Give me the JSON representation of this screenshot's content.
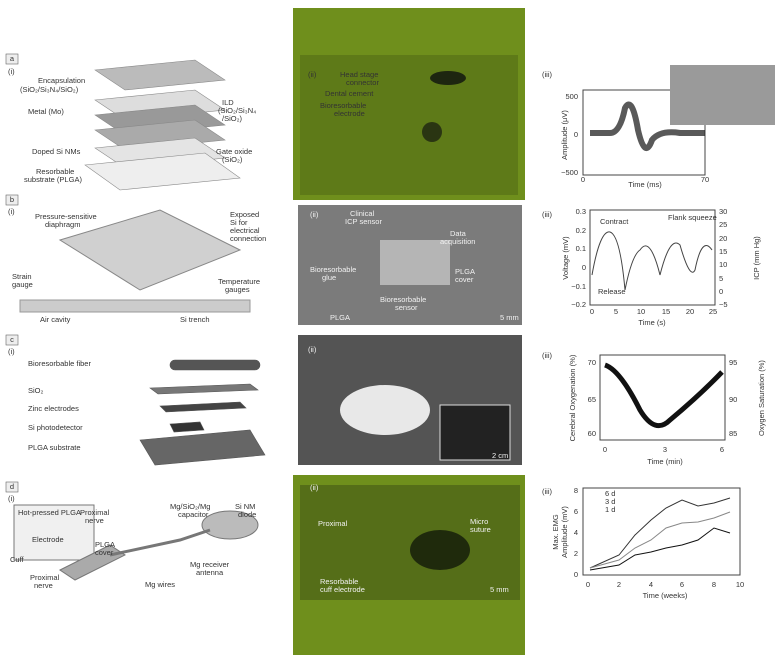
{
  "panels": [
    {
      "texts": [
        "a",
        "(i)",
        "Encapsulation",
        "(SiO₂/Si₃N₄/SiO₂)",
        "Metal (Mo)",
        "ILD",
        "(SiO₂/Si₃N₄",
        "/SiO₂)",
        "Doped Si NMs",
        "Gate oxide",
        "(SiO₂)",
        "Resorbable",
        "substrate (PLGA)"
      ]
    },
    {
      "texts": [
        "(ii)",
        "Head stage",
        "connector",
        "Dental cement",
        "Bioresorbable",
        "electrode"
      ]
    },
    {
      "texts": [
        "(iii)",
        "500",
        "0",
        "−500",
        "Amplitude (μV)",
        "Time (ms)",
        "0",
        "70"
      ]
    },
    {
      "texts": [
        "b",
        "(i)",
        "Pressure-sensitive",
        "diaphragm",
        "Exposed",
        "Si for",
        "electrical",
        "connection",
        "Strain",
        "gauge",
        "Temperature",
        "gauges",
        "Air cavity",
        "Si trench"
      ]
    },
    {
      "texts": [
        "(ii)",
        "Clinical",
        "ICP sensor",
        "Data",
        "acquisition",
        "Bioresorbable",
        "glue",
        "PLGA",
        "cover",
        "Bioresorbable",
        "sensor",
        "PLGA",
        "5 mm"
      ]
    },
    {
      "texts": [
        "(iii)",
        "Contract",
        "Flank squeeze",
        "Release",
        "0.3",
        "0.2",
        "0.1",
        "0",
        "−0.1",
        "−0.2",
        "30",
        "25",
        "20",
        "15",
        "10",
        "5",
        "0",
        "−5",
        "Voltage (mV)",
        "ICP (mm Hg)",
        "0",
        "5",
        "10",
        "15",
        "20",
        "25",
        "Time (s)"
      ]
    },
    {
      "texts": [
        "c",
        "(i)",
        "Bioresorbable fiber",
        "SiO₂",
        "Zinc electrodes",
        "Si photodetector",
        "PLGA substrate"
      ]
    },
    {
      "texts": [
        "(ii)",
        "2 cm"
      ]
    },
    {
      "texts": [
        "(iii)",
        "70",
        "65",
        "60",
        "Cerebral Oxygenation (%)",
        "95",
        "90",
        "85",
        "Oxygen Saturation (%)",
        "0",
        "3",
        "6",
        "Time (min)"
      ]
    },
    {
      "texts": [
        "d",
        "(i)",
        "Hot-pressed PLGA",
        "Proximal",
        "nerve",
        "Electrode",
        "Mg/SiO₂/Mg",
        "capacitor",
        "Si NM",
        "diode",
        "Cuff",
        "PLGA",
        "cover",
        "Mg receiver",
        "antenna",
        "Proximal",
        "nerve",
        "Mg wires"
      ]
    },
    {
      "texts": [
        "(ii)",
        "Proximal",
        "Micro",
        "suture",
        "Resorbable",
        "cuff electrode",
        "5 mm"
      ]
    },
    {
      "texts": [
        "(iii)",
        "6 d",
        "3 d",
        "1 d",
        "8",
        "6",
        "4",
        "2",
        "0",
        "Max. EMG",
        "Amplitude (mV)",
        "0",
        "2",
        "4",
        "6",
        "8",
        "10",
        "Time (weeks)"
      ]
    }
  ]
}
